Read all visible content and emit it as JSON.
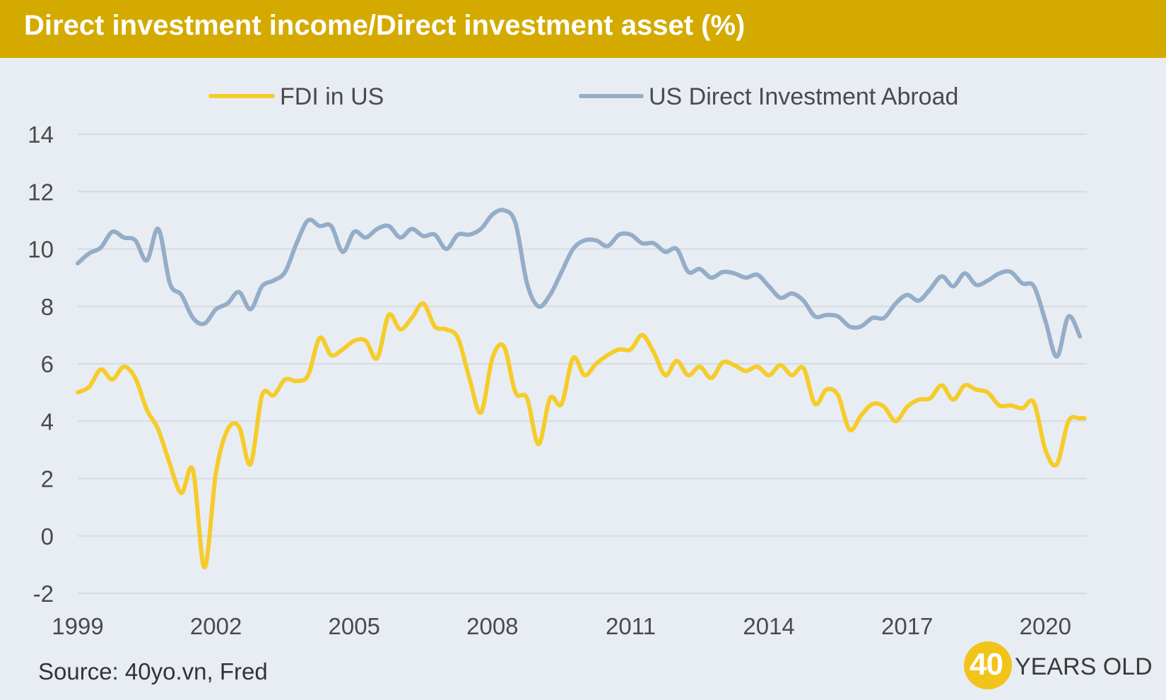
{
  "header": {
    "title": "Direct investment income/Direct investment asset (%)"
  },
  "source": "Source: 40yo.vn, Fred",
  "brand": {
    "number": "40",
    "text": "YEARS OLD"
  },
  "colors": {
    "fdi": "#f5cc2a",
    "usdia": "#94adc8",
    "header": "#d4aa00",
    "background": "#e8edf3",
    "grid": "#d6dbe1",
    "axis_text": "#4a4a4a"
  },
  "chart_data": {
    "type": "line",
    "title": "Direct investment income/Direct investment asset (%)",
    "xlabel": "",
    "ylabel": "",
    "xlim": [
      1999,
      2020.9
    ],
    "ylim": [
      -2,
      14
    ],
    "x_ticks": [
      1999,
      2002,
      2005,
      2008,
      2011,
      2014,
      2017,
      2020
    ],
    "y_ticks": [
      -2,
      0,
      2,
      4,
      6,
      8,
      10,
      12,
      14
    ],
    "grid": true,
    "legend_position": "top-center",
    "series": [
      {
        "name": "FDI in US",
        "color": "#f5cc2a",
        "points": [
          [
            1999.0,
            5.0
          ],
          [
            1999.25,
            5.2
          ],
          [
            1999.5,
            5.8
          ],
          [
            1999.75,
            5.45
          ],
          [
            2000.0,
            5.9
          ],
          [
            2000.25,
            5.5
          ],
          [
            2000.5,
            4.4
          ],
          [
            2000.75,
            3.7
          ],
          [
            2001.0,
            2.5
          ],
          [
            2001.25,
            1.5
          ],
          [
            2001.5,
            2.3
          ],
          [
            2001.75,
            -1.1
          ],
          [
            2002.0,
            2.2
          ],
          [
            2002.25,
            3.7
          ],
          [
            2002.5,
            3.8
          ],
          [
            2002.75,
            2.5
          ],
          [
            2003.0,
            4.9
          ],
          [
            2003.25,
            4.9
          ],
          [
            2003.5,
            5.45
          ],
          [
            2003.75,
            5.4
          ],
          [
            2004.0,
            5.6
          ],
          [
            2004.25,
            6.9
          ],
          [
            2004.5,
            6.3
          ],
          [
            2004.75,
            6.5
          ],
          [
            2005.0,
            6.8
          ],
          [
            2005.25,
            6.8
          ],
          [
            2005.5,
            6.2
          ],
          [
            2005.75,
            7.7
          ],
          [
            2006.0,
            7.2
          ],
          [
            2006.25,
            7.6
          ],
          [
            2006.5,
            8.1
          ],
          [
            2006.75,
            7.3
          ],
          [
            2007.0,
            7.2
          ],
          [
            2007.25,
            6.9
          ],
          [
            2007.5,
            5.5
          ],
          [
            2007.75,
            4.3
          ],
          [
            2008.0,
            6.2
          ],
          [
            2008.25,
            6.6
          ],
          [
            2008.5,
            5.0
          ],
          [
            2008.75,
            4.8
          ],
          [
            2009.0,
            3.2
          ],
          [
            2009.25,
            4.8
          ],
          [
            2009.5,
            4.6
          ],
          [
            2009.75,
            6.2
          ],
          [
            2010.0,
            5.6
          ],
          [
            2010.25,
            6.0
          ],
          [
            2010.5,
            6.3
          ],
          [
            2010.75,
            6.5
          ],
          [
            2011.0,
            6.5
          ],
          [
            2011.25,
            7.0
          ],
          [
            2011.5,
            6.4
          ],
          [
            2011.75,
            5.6
          ],
          [
            2012.0,
            6.1
          ],
          [
            2012.25,
            5.6
          ],
          [
            2012.5,
            5.9
          ],
          [
            2012.75,
            5.5
          ],
          [
            2013.0,
            6.05
          ],
          [
            2013.25,
            5.95
          ],
          [
            2013.5,
            5.75
          ],
          [
            2013.75,
            5.9
          ],
          [
            2014.0,
            5.6
          ],
          [
            2014.25,
            5.95
          ],
          [
            2014.5,
            5.6
          ],
          [
            2014.75,
            5.85
          ],
          [
            2015.0,
            4.6
          ],
          [
            2015.25,
            5.1
          ],
          [
            2015.5,
            4.9
          ],
          [
            2015.75,
            3.7
          ],
          [
            2016.0,
            4.2
          ],
          [
            2016.25,
            4.6
          ],
          [
            2016.5,
            4.5
          ],
          [
            2016.75,
            4.0
          ],
          [
            2017.0,
            4.5
          ],
          [
            2017.25,
            4.75
          ],
          [
            2017.5,
            4.8
          ],
          [
            2017.75,
            5.25
          ],
          [
            2018.0,
            4.75
          ],
          [
            2018.25,
            5.25
          ],
          [
            2018.5,
            5.1
          ],
          [
            2018.75,
            5.0
          ],
          [
            2019.0,
            4.55
          ],
          [
            2019.25,
            4.55
          ],
          [
            2019.5,
            4.45
          ],
          [
            2019.75,
            4.65
          ],
          [
            2020.0,
            3.0
          ],
          [
            2020.25,
            2.5
          ],
          [
            2020.5,
            4.0
          ],
          [
            2020.75,
            4.1
          ],
          [
            2020.85,
            4.1
          ]
        ]
      },
      {
        "name": "US Direct Investment Abroad",
        "color": "#94adc8",
        "points": [
          [
            1999.0,
            9.5
          ],
          [
            1999.25,
            9.85
          ],
          [
            1999.5,
            10.05
          ],
          [
            1999.75,
            10.6
          ],
          [
            2000.0,
            10.4
          ],
          [
            2000.25,
            10.3
          ],
          [
            2000.5,
            9.6
          ],
          [
            2000.75,
            10.7
          ],
          [
            2001.0,
            8.8
          ],
          [
            2001.25,
            8.4
          ],
          [
            2001.5,
            7.6
          ],
          [
            2001.75,
            7.4
          ],
          [
            2002.0,
            7.9
          ],
          [
            2002.25,
            8.1
          ],
          [
            2002.5,
            8.5
          ],
          [
            2002.75,
            7.9
          ],
          [
            2003.0,
            8.7
          ],
          [
            2003.25,
            8.9
          ],
          [
            2003.5,
            9.2
          ],
          [
            2003.75,
            10.2
          ],
          [
            2004.0,
            11.0
          ],
          [
            2004.25,
            10.8
          ],
          [
            2004.5,
            10.8
          ],
          [
            2004.75,
            9.9
          ],
          [
            2005.0,
            10.6
          ],
          [
            2005.25,
            10.4
          ],
          [
            2005.5,
            10.7
          ],
          [
            2005.75,
            10.8
          ],
          [
            2006.0,
            10.4
          ],
          [
            2006.25,
            10.7
          ],
          [
            2006.5,
            10.45
          ],
          [
            2006.75,
            10.5
          ],
          [
            2007.0,
            10.0
          ],
          [
            2007.25,
            10.5
          ],
          [
            2007.5,
            10.5
          ],
          [
            2007.75,
            10.7
          ],
          [
            2008.0,
            11.2
          ],
          [
            2008.25,
            11.35
          ],
          [
            2008.5,
            10.9
          ],
          [
            2008.75,
            8.8
          ],
          [
            2009.0,
            8.0
          ],
          [
            2009.25,
            8.4
          ],
          [
            2009.5,
            9.2
          ],
          [
            2009.75,
            10.0
          ],
          [
            2010.0,
            10.3
          ],
          [
            2010.25,
            10.3
          ],
          [
            2010.5,
            10.1
          ],
          [
            2010.75,
            10.5
          ],
          [
            2011.0,
            10.5
          ],
          [
            2011.25,
            10.2
          ],
          [
            2011.5,
            10.2
          ],
          [
            2011.75,
            9.9
          ],
          [
            2012.0,
            10.0
          ],
          [
            2012.25,
            9.2
          ],
          [
            2012.5,
            9.3
          ],
          [
            2012.75,
            9.0
          ],
          [
            2013.0,
            9.2
          ],
          [
            2013.25,
            9.15
          ],
          [
            2013.5,
            9.0
          ],
          [
            2013.75,
            9.1
          ],
          [
            2014.0,
            8.7
          ],
          [
            2014.25,
            8.3
          ],
          [
            2014.5,
            8.45
          ],
          [
            2014.75,
            8.2
          ],
          [
            2015.0,
            7.65
          ],
          [
            2015.25,
            7.7
          ],
          [
            2015.5,
            7.65
          ],
          [
            2015.75,
            7.3
          ],
          [
            2016.0,
            7.3
          ],
          [
            2016.25,
            7.6
          ],
          [
            2016.5,
            7.6
          ],
          [
            2016.75,
            8.1
          ],
          [
            2017.0,
            8.4
          ],
          [
            2017.25,
            8.2
          ],
          [
            2017.5,
            8.6
          ],
          [
            2017.75,
            9.05
          ],
          [
            2018.0,
            8.7
          ],
          [
            2018.25,
            9.15
          ],
          [
            2018.5,
            8.75
          ],
          [
            2018.75,
            8.9
          ],
          [
            2019.0,
            9.15
          ],
          [
            2019.25,
            9.2
          ],
          [
            2019.5,
            8.8
          ],
          [
            2019.75,
            8.7
          ],
          [
            2020.0,
            7.5
          ],
          [
            2020.25,
            6.25
          ],
          [
            2020.5,
            7.65
          ],
          [
            2020.75,
            6.95
          ]
        ]
      }
    ]
  }
}
